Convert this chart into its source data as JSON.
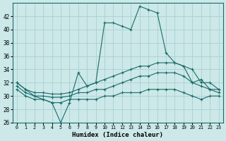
{
  "xlabel": "Humidex (Indice chaleur)",
  "xlim": [
    -0.5,
    23.5
  ],
  "ylim": [
    26,
    44
  ],
  "yticks": [
    26,
    28,
    30,
    32,
    34,
    36,
    38,
    40,
    42
  ],
  "xticks": [
    0,
    1,
    2,
    3,
    4,
    5,
    6,
    7,
    8,
    9,
    10,
    11,
    12,
    13,
    14,
    15,
    16,
    17,
    18,
    19,
    20,
    21,
    22,
    23
  ],
  "bg_color": "#cce8e8",
  "line_color": "#1a6b6b",
  "grid_color": "#aacfcf",
  "series": {
    "main": [
      32,
      31,
      30,
      29.5,
      29,
      26,
      29,
      33.5,
      31.5,
      32,
      41,
      41,
      40.5,
      40,
      43.5,
      43,
      42.5,
      36.5,
      35,
      34.5,
      32,
      32.5,
      31,
      31
    ],
    "upper": [
      32,
      31,
      30.5,
      30.5,
      30.3,
      30.3,
      30.5,
      31,
      31.5,
      32,
      32.5,
      33,
      33.5,
      34,
      34.5,
      34.5,
      35,
      35,
      35,
      34.5,
      34,
      32,
      32,
      31
    ],
    "mid": [
      31.5,
      30.5,
      30,
      30,
      29.8,
      29.8,
      30,
      30.5,
      30.5,
      31,
      31,
      31.5,
      32,
      32.5,
      33,
      33,
      33.5,
      33.5,
      33.5,
      33,
      32,
      31.5,
      31,
      30.5
    ],
    "lower": [
      31,
      30,
      29.5,
      29.5,
      29,
      29,
      29.5,
      29.5,
      29.5,
      29.5,
      30,
      30,
      30.5,
      30.5,
      30.5,
      31,
      31,
      31,
      31,
      30.5,
      30,
      29.5,
      30,
      30
    ]
  }
}
